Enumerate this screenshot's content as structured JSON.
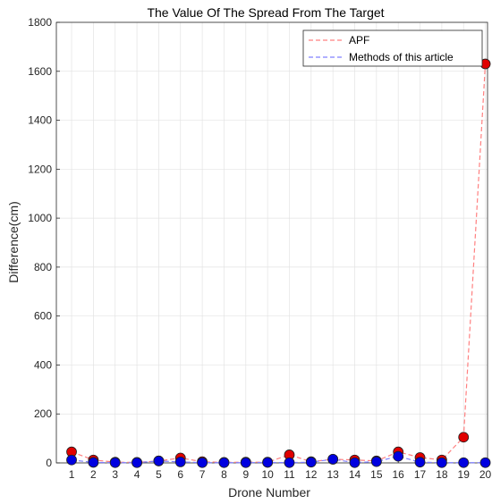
{
  "chart_data": {
    "type": "line",
    "title": "The Value Of The Spread From The Target",
    "xlabel": "Drone Number",
    "ylabel": "Difference(cm)",
    "x": [
      1,
      2,
      3,
      4,
      5,
      6,
      7,
      8,
      9,
      10,
      11,
      12,
      13,
      14,
      15,
      16,
      17,
      18,
      19,
      20
    ],
    "xlim": [
      0.3,
      20.1
    ],
    "ylim": [
      0,
      1800
    ],
    "yticks": [
      0,
      200,
      400,
      600,
      800,
      1000,
      1200,
      1400,
      1600,
      1800
    ],
    "grid": true,
    "legend_position": "top-right",
    "series": [
      {
        "name": "APF",
        "line_color": "#ff8080",
        "marker_color": "#e00000",
        "line_style": "dashed",
        "values": [
          45,
          12,
          3,
          2,
          8,
          20,
          5,
          2,
          3,
          3,
          33,
          5,
          15,
          12,
          8,
          45,
          22,
          12,
          105,
          1630
        ]
      },
      {
        "name": "Methods of this article",
        "line_color": "#8080ff",
        "marker_color": "#0000e0",
        "line_style": "dashed",
        "values": [
          12,
          2,
          1,
          1,
          8,
          4,
          1,
          1,
          1,
          2,
          1,
          3,
          15,
          1,
          5,
          27,
          3,
          1,
          1,
          1
        ]
      }
    ]
  }
}
